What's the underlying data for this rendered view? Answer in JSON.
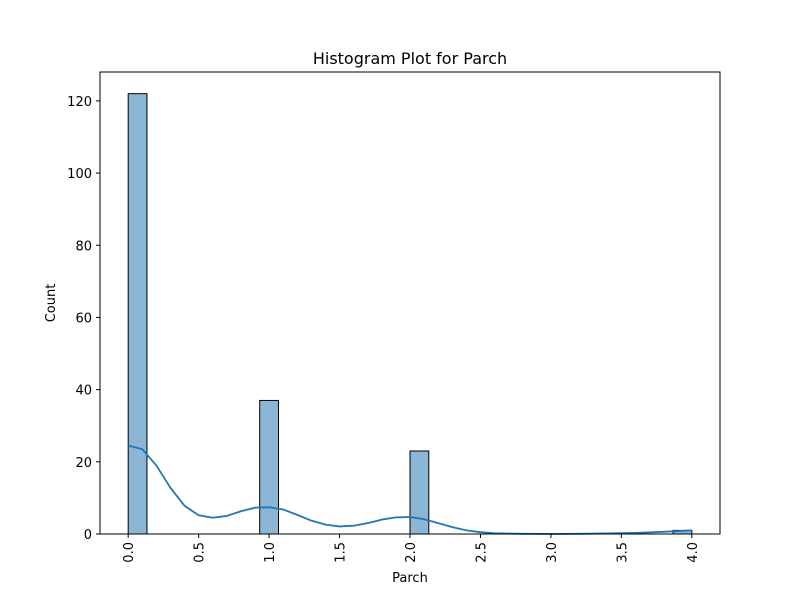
{
  "chart_data": {
    "type": "bar",
    "title": "Histogram Plot for Parch",
    "xlabel": "Parch",
    "ylabel": "Count",
    "xlim": [
      -0.2,
      4.2
    ],
    "ylim": [
      0,
      128
    ],
    "x_ticks": [
      0.0,
      0.5,
      1.0,
      1.5,
      2.0,
      2.5,
      3.0,
      3.5,
      4.0
    ],
    "x_tick_labels": [
      "0.0",
      "0.5",
      "1.0",
      "1.5",
      "2.0",
      "2.5",
      "3.0",
      "3.5",
      "4.0"
    ],
    "y_ticks": [
      0,
      20,
      40,
      60,
      80,
      100,
      120
    ],
    "y_tick_labels": [
      "0",
      "20",
      "40",
      "60",
      "80",
      "100",
      "120"
    ],
    "bin_width": 0.1333,
    "bins": [
      {
        "x0": 0.0,
        "x1": 0.1333,
        "count": 122
      },
      {
        "x0": 0.9333,
        "x1": 1.0667,
        "count": 37
      },
      {
        "x0": 2.0,
        "x1": 2.1333,
        "count": 23
      },
      {
        "x0": 3.8667,
        "x1": 4.0,
        "count": 1
      }
    ],
    "kde": {
      "x": [
        0.0,
        0.1,
        0.2,
        0.3,
        0.4,
        0.5,
        0.6,
        0.7,
        0.8,
        0.9,
        1.0,
        1.1,
        1.2,
        1.3,
        1.4,
        1.5,
        1.6,
        1.7,
        1.8,
        1.9,
        2.0,
        2.1,
        2.2,
        2.3,
        2.4,
        2.5,
        2.6,
        2.8,
        3.0,
        3.2,
        3.4,
        3.6,
        3.8,
        4.0
      ],
      "y": [
        24.5,
        23.5,
        19.0,
        12.8,
        7.8,
        5.2,
        4.5,
        5.0,
        6.3,
        7.3,
        7.4,
        6.8,
        5.3,
        3.7,
        2.6,
        2.1,
        2.3,
        3.0,
        4.0,
        4.6,
        4.7,
        4.1,
        3.0,
        1.9,
        1.0,
        0.5,
        0.2,
        0.05,
        0.02,
        0.05,
        0.15,
        0.3,
        0.6,
        1.0
      ]
    },
    "colors": {
      "bar_fill": "#8bb6d6",
      "bar_edge": "#000000",
      "kde_line": "#1f77b4",
      "axes": "#000000"
    },
    "grid": false
  }
}
